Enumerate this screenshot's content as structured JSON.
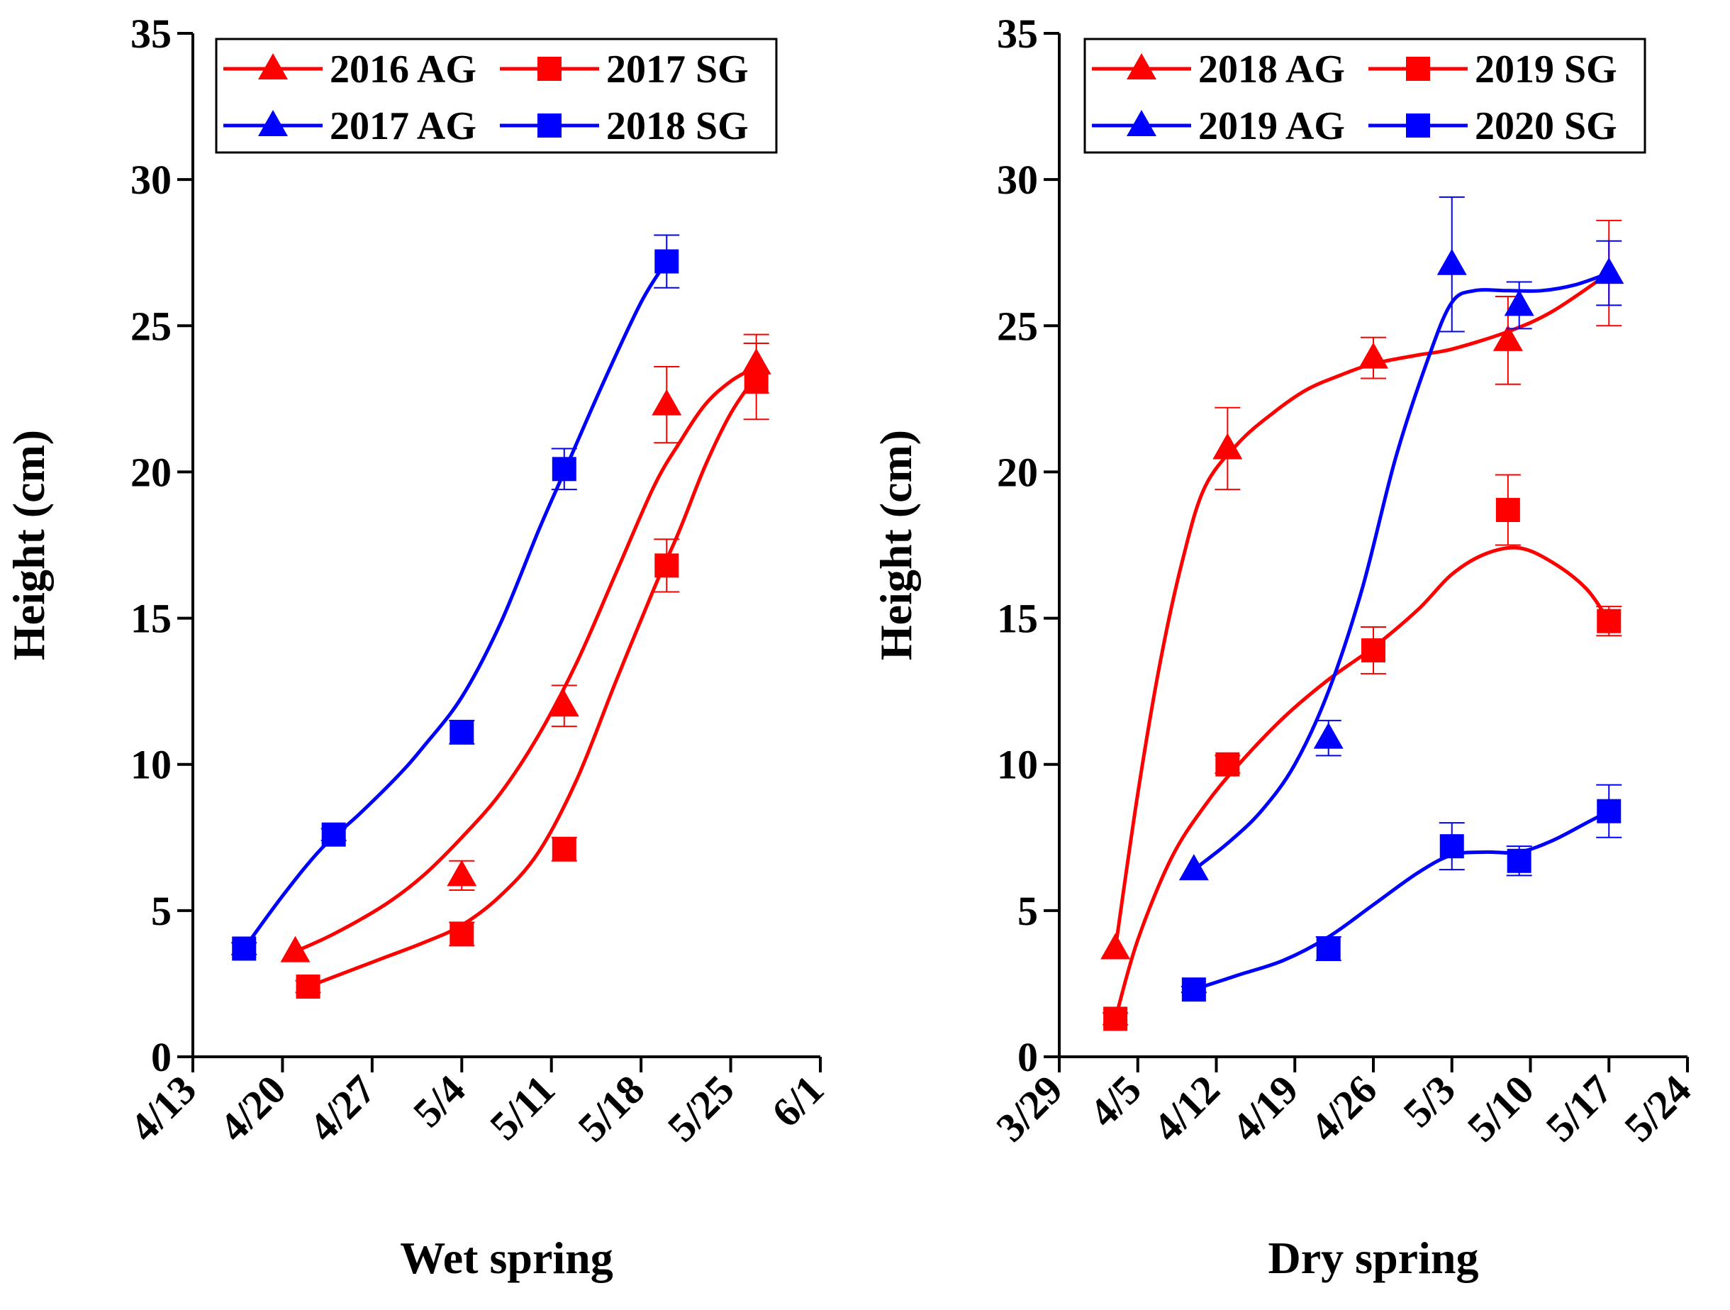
{
  "chart_data": [
    {
      "type": "line",
      "xlabel": "Wet spring",
      "ylabel": "Height (cm)",
      "ylim": [
        0,
        35
      ],
      "yticks": [
        0,
        5,
        10,
        15,
        20,
        25,
        30,
        35
      ],
      "xticks": [
        "4/13",
        "4/20",
        "4/27",
        "5/4",
        "5/11",
        "5/18",
        "5/25",
        "6/1"
      ],
      "xlim": [
        "4/13",
        "6/1"
      ],
      "legend": "top-left",
      "grid": false,
      "series": [
        {
          "name": "2016 AG",
          "marker": "triangle",
          "color": "#ff0000",
          "points": [
            {
              "date": "4/21",
              "value": 3.6,
              "err": 0
            },
            {
              "date": "5/4",
              "value": 6.2,
              "err": 0.5
            },
            {
              "date": "5/12",
              "value": 12.0,
              "err": 0.7
            },
            {
              "date": "5/20",
              "value": 22.3,
              "err": 1.3
            },
            {
              "date": "5/27",
              "value": 23.7,
              "err": 1.0
            }
          ],
          "curve": [
            [
              "4/21",
              3.6
            ],
            [
              "4/24",
              4.2
            ],
            [
              "4/28",
              5.2
            ],
            [
              "5/1",
              6.2
            ],
            [
              "5/4",
              7.5
            ],
            [
              "5/7",
              9.0
            ],
            [
              "5/10",
              11.0
            ],
            [
              "5/13",
              13.5
            ],
            [
              "5/16",
              16.5
            ],
            [
              "5/19",
              19.5
            ],
            [
              "5/21",
              21.0
            ],
            [
              "5/23",
              22.3
            ],
            [
              "5/25",
              23.1
            ],
            [
              "5/27",
              23.6
            ]
          ]
        },
        {
          "name": "2017 SG",
          "marker": "square",
          "color": "#ff0000",
          "points": [
            {
              "date": "4/22",
              "value": 2.4,
              "err": 0.2
            },
            {
              "date": "5/4",
              "value": 4.2,
              "err": 0.4
            },
            {
              "date": "5/12",
              "value": 7.1,
              "err": 0.4
            },
            {
              "date": "5/20",
              "value": 16.8,
              "err": 0.9
            },
            {
              "date": "5/27",
              "value": 23.1,
              "err": 1.3
            }
          ],
          "curve": [
            [
              "4/22",
              2.4
            ],
            [
              "4/25",
              2.9
            ],
            [
              "4/28",
              3.4
            ],
            [
              "5/1",
              3.9
            ],
            [
              "5/4",
              4.5
            ],
            [
              "5/7",
              5.5
            ],
            [
              "5/10",
              7.0
            ],
            [
              "5/13",
              9.5
            ],
            [
              "5/16",
              12.8
            ],
            [
              "5/19",
              16.0
            ],
            [
              "5/21",
              18.0
            ],
            [
              "5/23",
              20.2
            ],
            [
              "5/25",
              22.0
            ],
            [
              "5/27",
              23.3
            ]
          ]
        },
        {
          "name": "2017 AG",
          "marker": "triangle",
          "color": "#0000ff",
          "points": [],
          "curve": []
        },
        {
          "name": "2018 SG",
          "marker": "square",
          "color": "#0000ff",
          "points": [
            {
              "date": "4/17",
              "value": 3.7,
              "err": 0.2
            },
            {
              "date": "4/24",
              "value": 7.6,
              "err": 0.2
            },
            {
              "date": "5/4",
              "value": 11.1,
              "err": 0.4
            },
            {
              "date": "5/12",
              "value": 20.1,
              "err": 0.7
            },
            {
              "date": "5/20",
              "value": 27.2,
              "err": 0.9
            }
          ],
          "curve": [
            [
              "4/17",
              3.7
            ],
            [
              "4/20",
              5.5
            ],
            [
              "4/23",
              7.1
            ],
            [
              "4/26",
              8.3
            ],
            [
              "4/29",
              9.6
            ],
            [
              "5/1",
              10.6
            ],
            [
              "5/4",
              12.3
            ],
            [
              "5/7",
              14.8
            ],
            [
              "5/10",
              18.0
            ],
            [
              "5/12",
              20.0
            ],
            [
              "5/15",
              23.0
            ],
            [
              "5/18",
              25.8
            ],
            [
              "5/20",
              27.2
            ]
          ]
        }
      ]
    },
    {
      "type": "line",
      "xlabel": "Dry spring",
      "ylabel": "Height (cm)",
      "ylim": [
        0,
        35
      ],
      "yticks": [
        0,
        5,
        10,
        15,
        20,
        25,
        30,
        35
      ],
      "xticks": [
        "3/29",
        "4/5",
        "4/12",
        "4/19",
        "4/26",
        "5/3",
        "5/10",
        "5/17",
        "5/24"
      ],
      "xlim": [
        "3/29",
        "5/24"
      ],
      "legend": "top",
      "grid": false,
      "series": [
        {
          "name": "2018 AG",
          "marker": "triangle",
          "color": "#ff0000",
          "points": [
            {
              "date": "4/3",
              "value": 3.7,
              "err": 0
            },
            {
              "date": "4/13",
              "value": 20.8,
              "err": 1.4
            },
            {
              "date": "4/26",
              "value": 23.9,
              "err": 0.7
            },
            {
              "date": "5/8",
              "value": 24.5,
              "err": 1.5
            },
            {
              "date": "5/17",
              "value": 26.8,
              "err": 1.8
            }
          ],
          "curve": [
            [
              "4/3",
              3.7
            ],
            [
              "4/5",
              9.0
            ],
            [
              "4/7",
              13.5
            ],
            [
              "4/9",
              17.0
            ],
            [
              "4/11",
              19.5
            ],
            [
              "4/14",
              21.0
            ],
            [
              "4/17",
              22.0
            ],
            [
              "4/20",
              22.8
            ],
            [
              "4/23",
              23.3
            ],
            [
              "4/26",
              23.7
            ],
            [
              "4/30",
              24.0
            ],
            [
              "5/3",
              24.2
            ],
            [
              "5/8",
              24.8
            ],
            [
              "5/12",
              25.5
            ],
            [
              "5/17",
              26.8
            ]
          ]
        },
        {
          "name": "2019 SG",
          "marker": "square",
          "color": "#ff0000",
          "points": [
            {
              "date": "4/3",
              "value": 1.3,
              "err": 0.2
            },
            {
              "date": "4/13",
              "value": 10.0,
              "err": 0.3
            },
            {
              "date": "4/26",
              "value": 13.9,
              "err": 0.8
            },
            {
              "date": "5/8",
              "value": 18.7,
              "err": 1.2
            },
            {
              "date": "5/17",
              "value": 14.9,
              "err": 0.5
            }
          ],
          "curve": [
            [
              "4/3",
              1.3
            ],
            [
              "4/5",
              4.0
            ],
            [
              "4/8",
              6.8
            ],
            [
              "4/11",
              8.6
            ],
            [
              "4/14",
              10.0
            ],
            [
              "4/18",
              11.6
            ],
            [
              "4/22",
              12.9
            ],
            [
              "4/26",
              14.0
            ],
            [
              "4/30",
              15.3
            ],
            [
              "5/3",
              16.5
            ],
            [
              "5/6",
              17.2
            ],
            [
              "5/9",
              17.4
            ],
            [
              "5/12",
              16.9
            ],
            [
              "5/15",
              16.0
            ],
            [
              "5/17",
              14.9
            ]
          ]
        },
        {
          "name": "2019 AG",
          "marker": "triangle",
          "color": "#0000ff",
          "points": [
            {
              "date": "4/10",
              "value": 6.4,
              "err": 0
            },
            {
              "date": "4/22",
              "value": 10.9,
              "err": 0.6
            },
            {
              "date": "5/3",
              "value": 27.1,
              "err": 2.3
            },
            {
              "date": "5/9",
              "value": 25.7,
              "err": 0.8
            },
            {
              "date": "5/17",
              "value": 26.8,
              "err": 1.1
            }
          ],
          "curve": [
            [
              "4/10",
              6.4
            ],
            [
              "4/13",
              7.3
            ],
            [
              "4/16",
              8.4
            ],
            [
              "4/19",
              10.0
            ],
            [
              "4/22",
              12.5
            ],
            [
              "4/25",
              16.0
            ],
            [
              "4/28",
              20.5
            ],
            [
              "5/1",
              24.0
            ],
            [
              "5/3",
              25.8
            ],
            [
              "5/5",
              26.2
            ],
            [
              "5/8",
              26.2
            ],
            [
              "5/11",
              26.2
            ],
            [
              "5/14",
              26.4
            ],
            [
              "5/17",
              26.8
            ]
          ]
        },
        {
          "name": "2020 SG",
          "marker": "square",
          "color": "#0000ff",
          "points": [
            {
              "date": "4/10",
              "value": 2.3,
              "err": 0.1
            },
            {
              "date": "4/22",
              "value": 3.7,
              "err": 0.4
            },
            {
              "date": "5/3",
              "value": 7.2,
              "err": 0.8
            },
            {
              "date": "5/9",
              "value": 6.7,
              "err": 0.5
            },
            {
              "date": "5/17",
              "value": 8.4,
              "err": 0.9
            }
          ],
          "curve": [
            [
              "4/10",
              2.3
            ],
            [
              "4/14",
              2.8
            ],
            [
              "4/18",
              3.3
            ],
            [
              "4/22",
              4.1
            ],
            [
              "4/26",
              5.2
            ],
            [
              "4/30",
              6.3
            ],
            [
              "5/3",
              6.9
            ],
            [
              "5/6",
              7.0
            ],
            [
              "5/9",
              7.0
            ],
            [
              "5/12",
              7.4
            ],
            [
              "5/15",
              8.0
            ],
            [
              "5/17",
              8.4
            ]
          ]
        }
      ]
    }
  ]
}
